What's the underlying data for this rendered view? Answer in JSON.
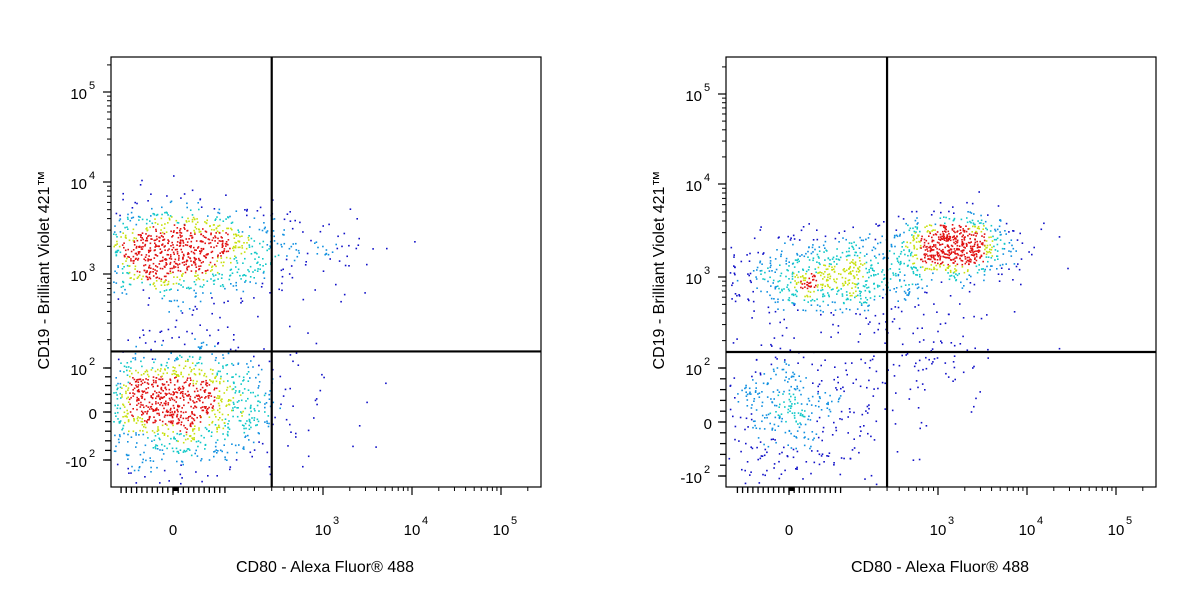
{
  "chart_data": [
    {
      "type": "scatter",
      "subtype": "flow-cytometry-density-dotplot",
      "xlabel": "CD80 - Alexa Fluor® 488",
      "ylabel": "CD19 - Brilliant Violet 421™",
      "x_scale": "biexponential",
      "y_scale": "biexponential",
      "x_ticks": [
        {
          "value": 0,
          "label": "0"
        },
        {
          "value": 1000,
          "label": "10",
          "exp": "3"
        },
        {
          "value": 10000,
          "label": "10",
          "exp": "4"
        },
        {
          "value": 100000,
          "label": "10",
          "exp": "5"
        }
      ],
      "y_ticks": [
        {
          "value": -100,
          "label": "-10",
          "exp": "2"
        },
        {
          "value": 0,
          "label": "0"
        },
        {
          "value": 100,
          "label": "10",
          "exp": "2"
        },
        {
          "value": 1000,
          "label": "10",
          "exp": "3"
        },
        {
          "value": 10000,
          "label": "10",
          "exp": "4"
        },
        {
          "value": 100000,
          "label": "10",
          "exp": "5"
        }
      ],
      "quadrant_gate": {
        "x": 300,
        "y": 150
      },
      "populations": [
        {
          "cx": 0,
          "cy": 1800,
          "sx_log": 0.5,
          "sy_log": 0.22,
          "count": 1100
        },
        {
          "cx": 0,
          "cy": 20,
          "sx_log": 0.5,
          "sy_log": 0.3,
          "count": 1300
        },
        {
          "cx": 800,
          "cy": 2000,
          "sx_log": 0.35,
          "sy_log": 0.15,
          "count": 55
        }
      ],
      "colors": {
        "low": "#1010c8",
        "mid": "#10c8c8",
        "midhigh": "#c8e010",
        "high": "#e01010",
        "gate": "#000000"
      }
    },
    {
      "type": "scatter",
      "subtype": "flow-cytometry-density-dotplot",
      "xlabel": "CD80 - Alexa Fluor® 488",
      "ylabel": "CD19 - Brilliant Violet 421™",
      "x_scale": "biexponential",
      "y_scale": "biexponential",
      "x_ticks": [
        {
          "value": 0,
          "label": "0"
        },
        {
          "value": 1000,
          "label": "10",
          "exp": "3"
        },
        {
          "value": 10000,
          "label": "10",
          "exp": "4"
        },
        {
          "value": 100000,
          "label": "10",
          "exp": "5"
        }
      ],
      "y_ticks": [
        {
          "value": -100,
          "label": "-10",
          "exp": "2"
        },
        {
          "value": 0,
          "label": "0"
        },
        {
          "value": 100,
          "label": "10",
          "exp": "2"
        },
        {
          "value": 1000,
          "label": "10",
          "exp": "3"
        },
        {
          "value": 10000,
          "label": "10",
          "exp": "4"
        },
        {
          "value": 100000,
          "label": "10",
          "exp": "5"
        }
      ],
      "quadrant_gate": {
        "x": 300,
        "y": 150
      },
      "populations": [
        {
          "cx": 80,
          "cy": 1000,
          "sx_log": 0.45,
          "sy_log": 0.2,
          "count": 700
        },
        {
          "cx": 1500,
          "cy": 2200,
          "sx_log": 0.3,
          "sy_log": 0.15,
          "count": 650
        },
        {
          "cx": 10,
          "cy": 20,
          "sx_log": 0.4,
          "sy_log": 0.3,
          "count": 450
        },
        {
          "cx": 900,
          "cy": 150,
          "sx_log": 0.45,
          "sy_log": 0.25,
          "count": 90
        }
      ],
      "colors": {
        "low": "#1010c8",
        "mid": "#10c8c8",
        "midhigh": "#c8e010",
        "high": "#e01010",
        "gate": "#000000"
      }
    }
  ]
}
